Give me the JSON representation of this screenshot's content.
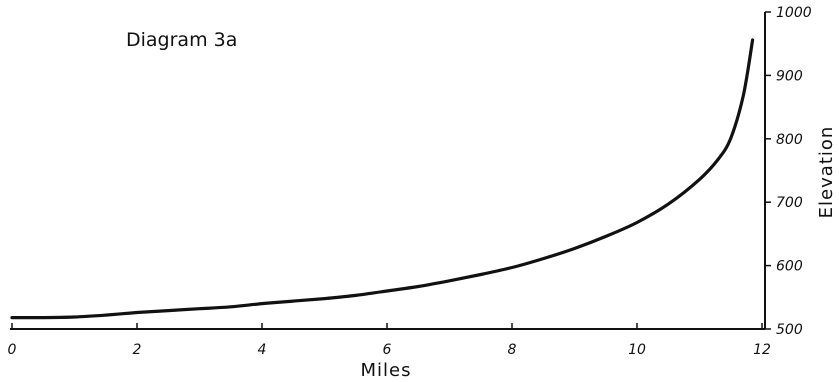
{
  "chart_data": {
    "type": "line",
    "title": "Diagram 3a",
    "xlabel": "Miles",
    "ylabel": "Elevation",
    "xlim": [
      0,
      12
    ],
    "ylim": [
      500,
      1000
    ],
    "x_ticks": [
      "0",
      "2",
      "4",
      "6",
      "8",
      "10",
      "12"
    ],
    "y_ticks": [
      "500",
      "600",
      "700",
      "800",
      "900",
      "1000"
    ],
    "grid": false,
    "series": [
      {
        "x": [
          0,
          0.5,
          1,
          1.5,
          2,
          2.5,
          3,
          3.5,
          4,
          4.5,
          5,
          5.5,
          6,
          6.5,
          7,
          7.5,
          8,
          8.5,
          9,
          9.5,
          10,
          10.5,
          11,
          11.3,
          11.5,
          11.7,
          11.85
        ],
        "y": [
          518,
          518,
          519,
          522,
          526,
          529,
          532,
          535,
          540,
          544,
          548,
          553,
          560,
          567,
          576,
          586,
          597,
          611,
          627,
          646,
          668,
          697,
          736,
          768,
          801,
          868,
          956
        ]
      }
    ]
  }
}
